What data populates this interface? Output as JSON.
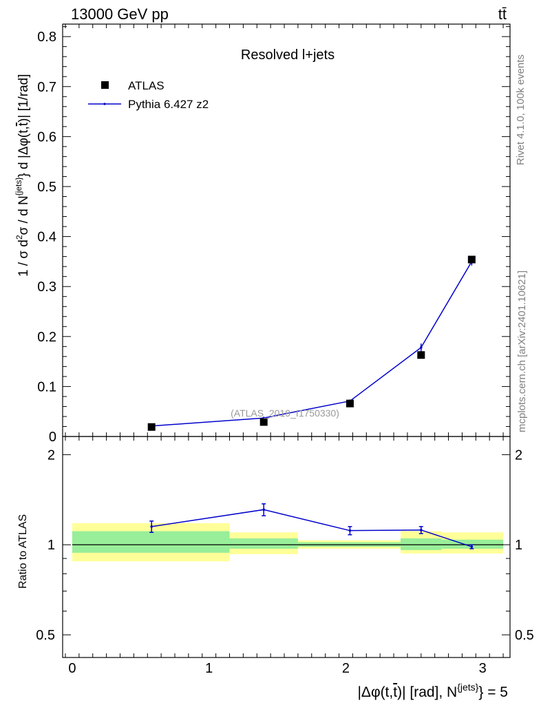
{
  "header": {
    "energy_label": "13000 GeV pp",
    "process_label": "tt̄"
  },
  "side_labels": {
    "rivet": "Rivet 4.1.0,  100k events",
    "mcplots": "mcplots.cern.ch [arXiv:2401.10621]"
  },
  "main_plot": {
    "title": "Resolved l+jets",
    "watermark": "(ATLAS_2019_I1750330)",
    "ylabel": "1 / σ d²σ / d N^{jets} d |Δφ(t,t̄)| [1/rad]",
    "legend": [
      {
        "label": "ATLAS",
        "marker": "square",
        "color": "#000000"
      },
      {
        "label": "Pythia 6.427 z2",
        "marker": "line",
        "color": "#0000cc"
      }
    ]
  },
  "ratio_plot": {
    "ylabel": "Ratio to ATLAS"
  },
  "xaxis": {
    "label": "|Δφ(t,t̄)| [rad], N^{jets} = 5"
  },
  "chart_data": [
    {
      "type": "scatter",
      "title": "Resolved l+jets",
      "xlabel": "|Δφ(t,t̄)| [rad], N^{jets} = 5",
      "ylabel": "1 / σ d²σ / d N^{jets} d |Δφ(t,t̄)| [1/rad]",
      "xlim": [
        -0.07,
        3.2
      ],
      "ylim": [
        0,
        0.825
      ],
      "xticks": [
        "0",
        "1",
        "2",
        "3"
      ],
      "yticks": [
        "0",
        "0.1",
        "0.2",
        "0.3",
        "0.4",
        "0.5",
        "0.6",
        "0.7",
        "0.8"
      ],
      "legend_position": "top-left",
      "series": [
        {
          "name": "ATLAS",
          "x": [
            0.58,
            1.4,
            2.03,
            2.55,
            2.92
          ],
          "y": [
            0.019,
            0.029,
            0.066,
            0.163,
            0.354
          ]
        },
        {
          "name": "Pythia 6.427 z2",
          "x": [
            0.58,
            1.4,
            2.03,
            2.55,
            2.92
          ],
          "y": [
            0.021,
            0.037,
            0.071,
            0.178,
            0.35
          ],
          "err": [
            0.001,
            0.002,
            0.003,
            0.008,
            0.008
          ]
        }
      ]
    },
    {
      "type": "line",
      "title": "Ratio to ATLAS",
      "ylabel": "Ratio to ATLAS",
      "ylim": [
        0.42,
        2.3
      ],
      "yscale": "log",
      "yticks": [
        "0.5",
        "1",
        "2"
      ],
      "reference": 1,
      "bands": [
        {
          "x_low": 0.0,
          "x_high": 1.15,
          "inner": [
            0.94,
            1.11
          ],
          "outer": [
            0.88,
            1.18
          ]
        },
        {
          "x_low": 1.15,
          "x_high": 1.65,
          "inner": [
            0.97,
            1.05
          ],
          "outer": [
            0.93,
            1.1
          ]
        },
        {
          "x_low": 1.65,
          "x_high": 2.4,
          "inner": [
            0.985,
            1.02
          ],
          "outer": [
            0.97,
            1.035
          ]
        },
        {
          "x_low": 2.4,
          "x_high": 2.7,
          "inner": [
            0.96,
            1.05
          ],
          "outer": [
            0.935,
            1.11
          ]
        },
        {
          "x_low": 2.7,
          "x_high": 3.15,
          "inner": [
            0.97,
            1.04
          ],
          "outer": [
            0.935,
            1.1
          ]
        }
      ],
      "series": [
        {
          "name": "Pythia 6.427 z2",
          "x": [
            0.58,
            1.4,
            2.03,
            2.55,
            2.92
          ],
          "y": [
            1.15,
            1.31,
            1.115,
            1.12,
            0.985
          ],
          "err": [
            0.05,
            0.06,
            0.035,
            0.03,
            0.015
          ]
        }
      ]
    }
  ]
}
